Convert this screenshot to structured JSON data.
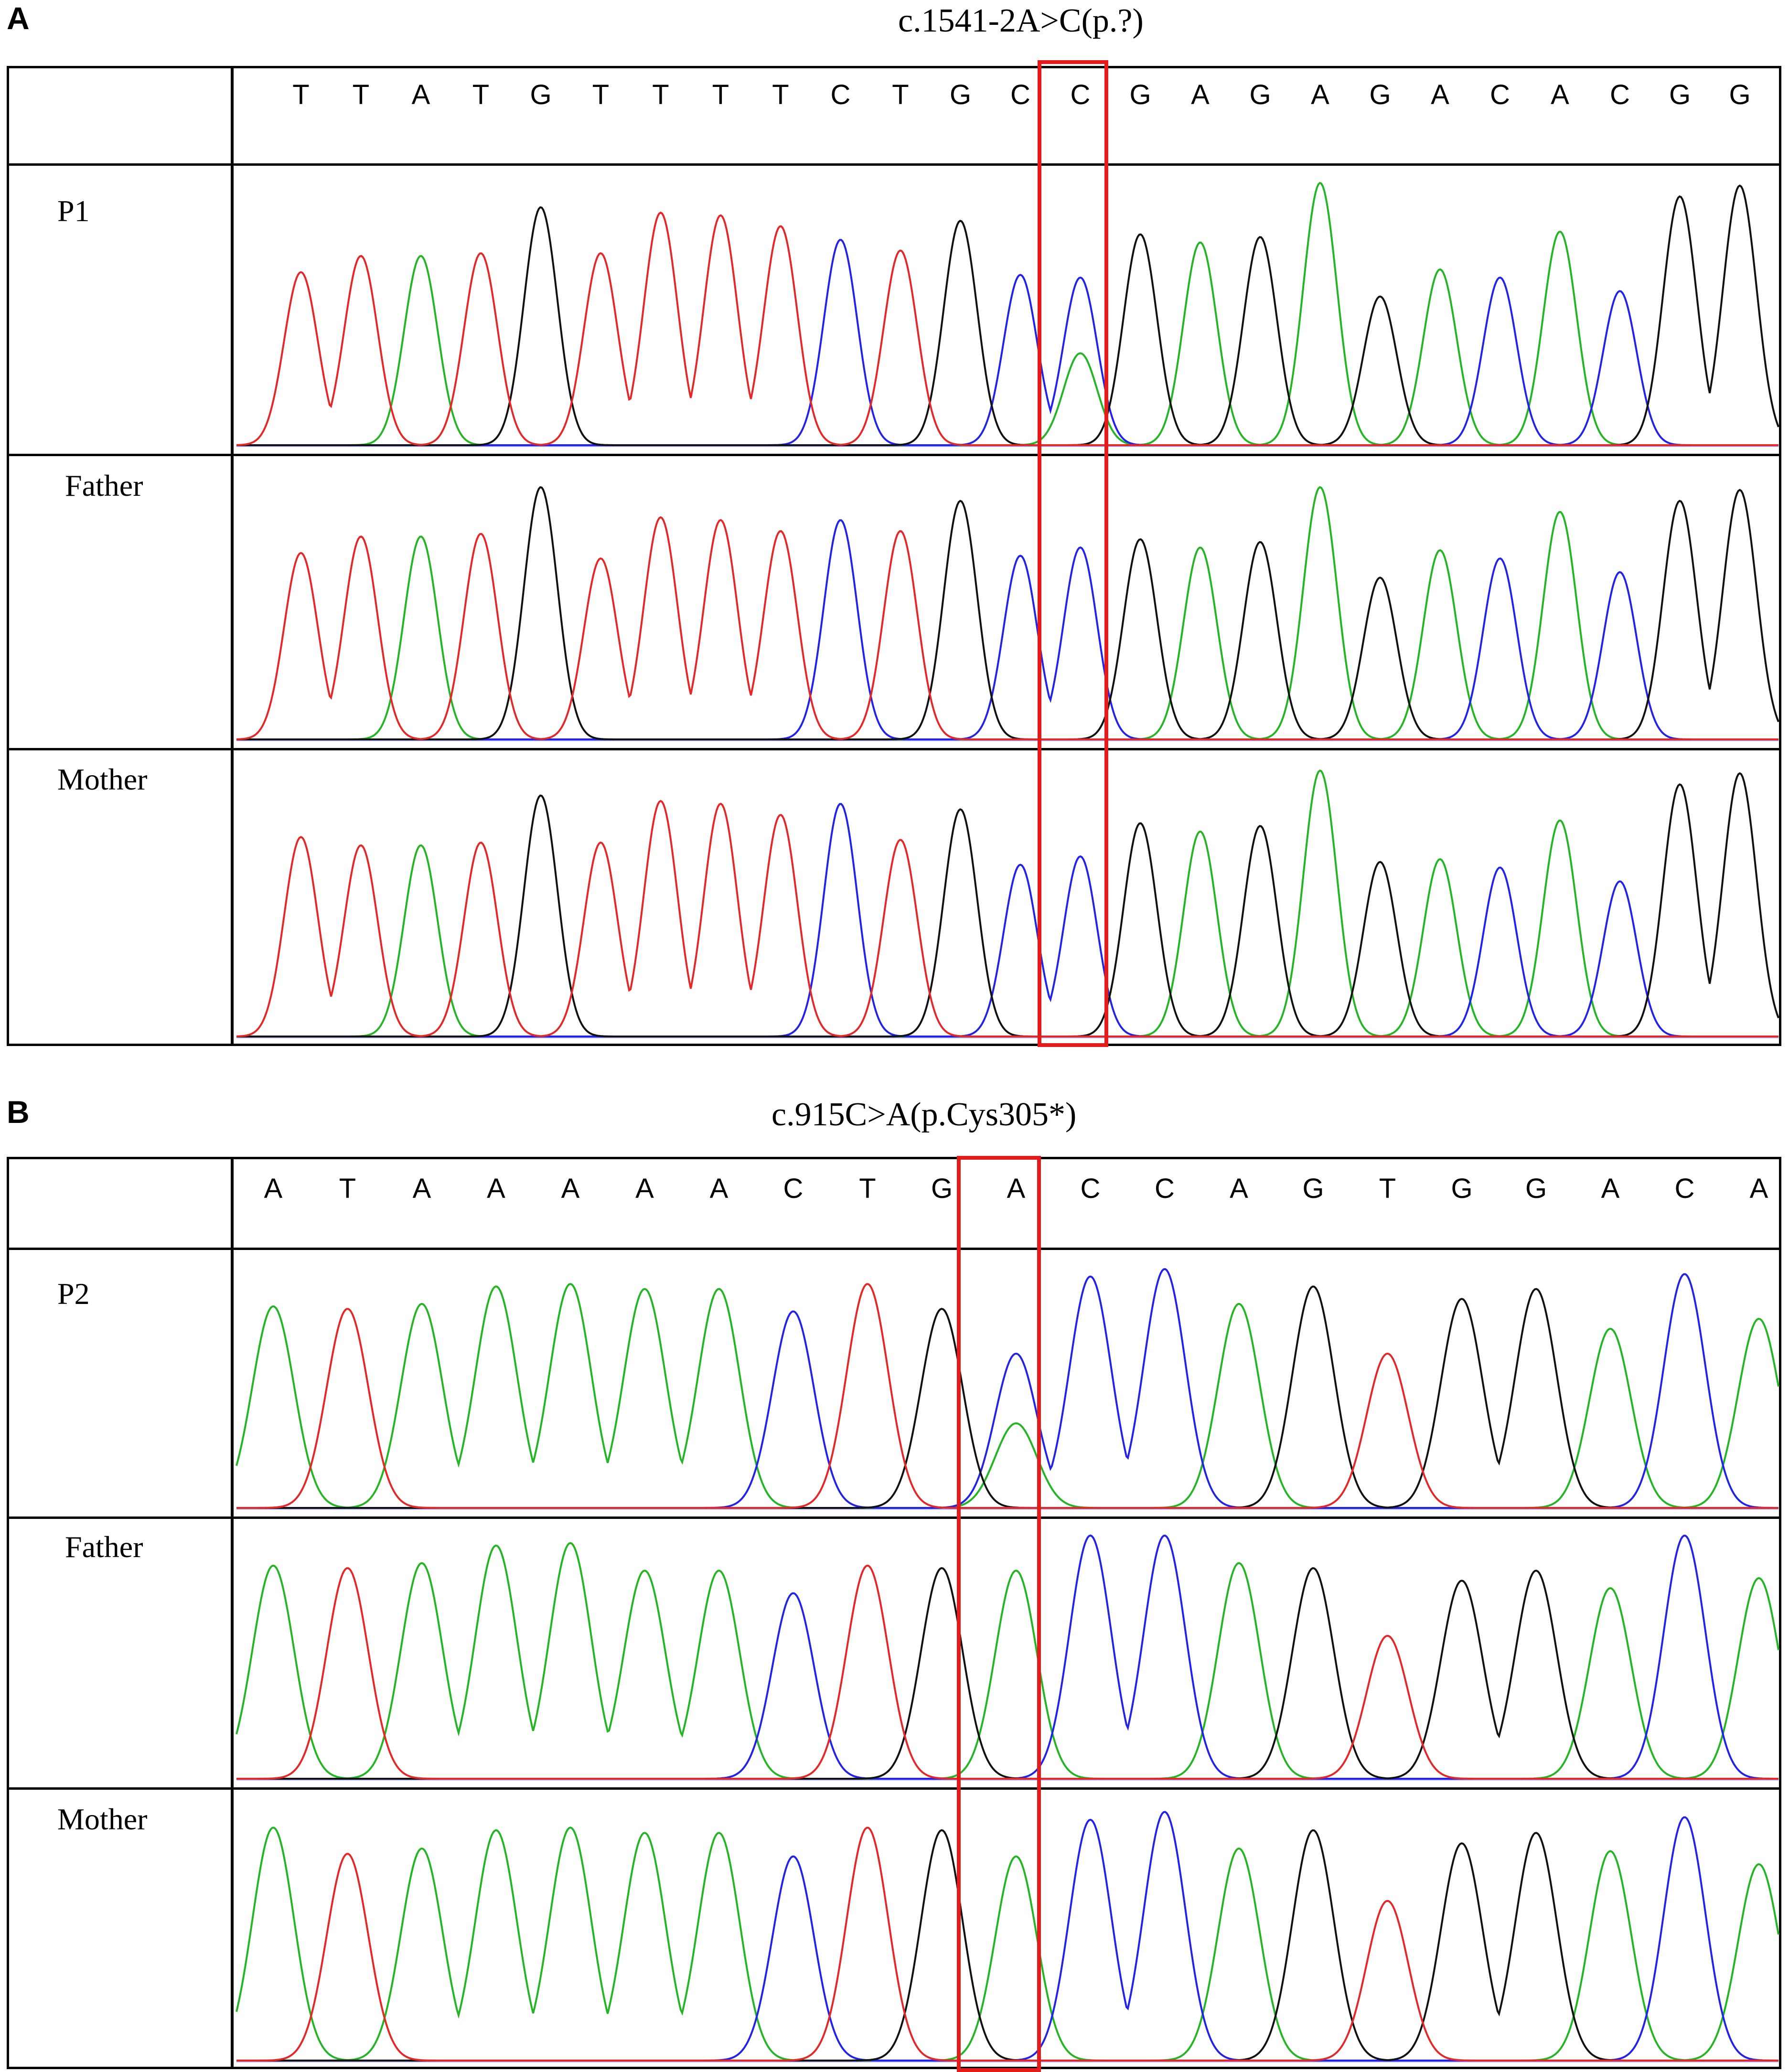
{
  "colors": {
    "A": "#23b523",
    "C": "#2222e8",
    "G": "#111111",
    "T": "#e42828",
    "highlight": "#e41b1b"
  },
  "panels": [
    {
      "letter": "A",
      "title": "c.1541-2A>C(p.?)",
      "sequence": [
        "T",
        "T",
        "A",
        "T",
        "G",
        "T",
        "T",
        "T",
        "T",
        "C",
        "T",
        "G",
        "C",
        "C",
        "G",
        "A",
        "G",
        "A",
        "G",
        "A",
        "C",
        "A",
        "C",
        "G",
        "G"
      ],
      "highlight_index": 13,
      "rows": [
        {
          "label": "P1",
          "heterozygous": {
            "index": 13,
            "primary": "C",
            "secondary": "A"
          }
        },
        {
          "label": "Father"
        },
        {
          "label": "Mother"
        }
      ]
    },
    {
      "letter": "B",
      "title": "c.915C>A(p.Cys305*)",
      "sequence": [
        "A",
        "T",
        "A",
        "A",
        "A",
        "A",
        "A",
        "C",
        "T",
        "G",
        "A",
        "C",
        "C",
        "A",
        "G",
        "T",
        "G",
        "G",
        "A",
        "C",
        "A"
      ],
      "highlight_index": 10,
      "rows": [
        {
          "label": "P2",
          "heterozygous": {
            "index": 10,
            "primary": "C",
            "secondary": "A"
          }
        },
        {
          "label": "Father"
        },
        {
          "label": "Mother"
        }
      ]
    }
  ]
}
